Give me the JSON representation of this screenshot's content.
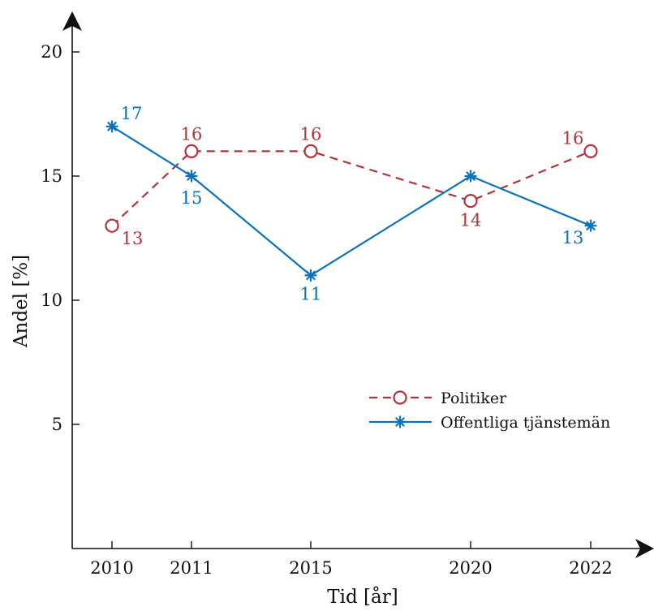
{
  "chart_data": {
    "type": "line",
    "title": "",
    "xlabel": "Tid [år]",
    "ylabel": "Andel [%]",
    "x": [
      2010,
      2011,
      2015,
      2020,
      2022
    ],
    "x_tick_labels": [
      "2010",
      "2011",
      "2015",
      "2020",
      "2022"
    ],
    "y_ticks": [
      5,
      10,
      15,
      20
    ],
    "y_tick_labels": [
      "5",
      "10",
      "15",
      "20"
    ],
    "grid": false,
    "legend_position": "center-right",
    "series": [
      {
        "name": "Politiker",
        "values": [
          13,
          16,
          16,
          14,
          16
        ],
        "value_labels": [
          "13",
          "16",
          "16",
          "14",
          "16"
        ],
        "color": "#b5313c",
        "line_style": "dashed",
        "marker": "circle"
      },
      {
        "name": "Offentliga tjänstemän",
        "values": [
          17,
          15,
          11,
          15,
          13
        ],
        "value_labels": [
          "17",
          "15",
          "11",
          "15",
          "13"
        ],
        "color": "#0a72ba",
        "line_style": "solid",
        "marker": "asterisk"
      }
    ]
  }
}
